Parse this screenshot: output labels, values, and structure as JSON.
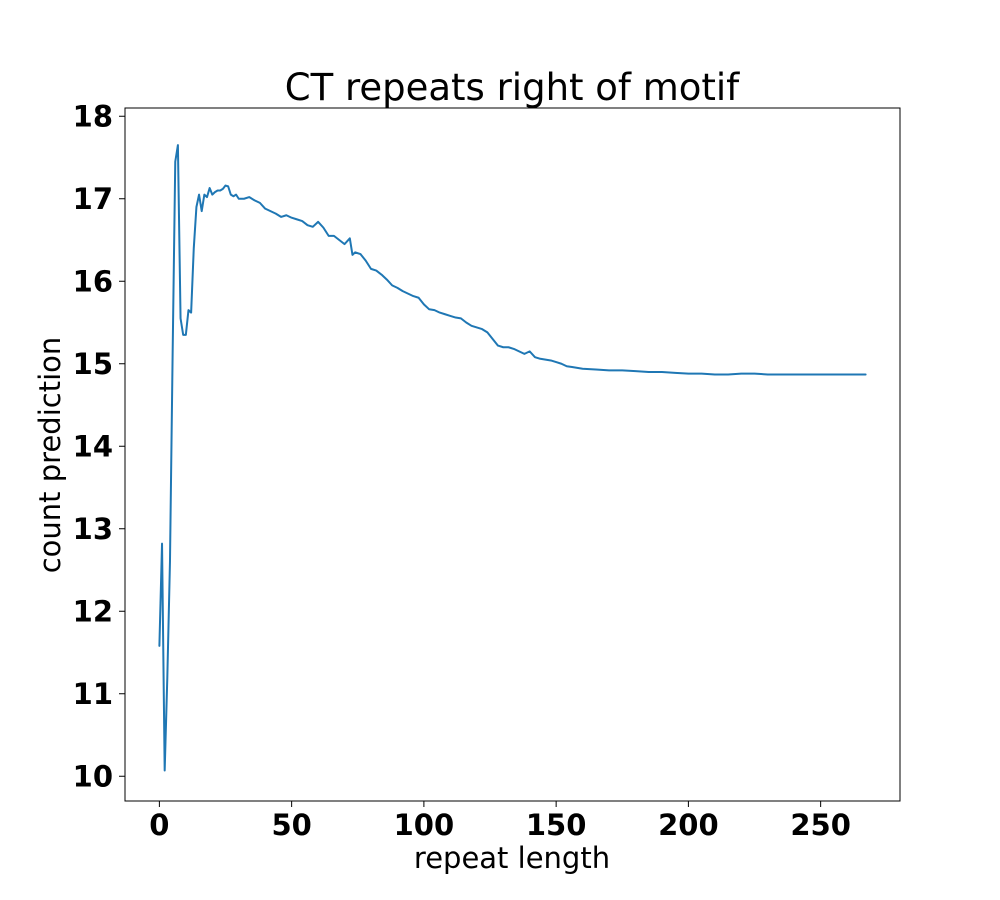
{
  "chart_data": {
    "type": "line",
    "title": "CT repeats right of motif",
    "xlabel": "repeat length",
    "ylabel": "count prediction",
    "xlim": [
      -13,
      280
    ],
    "ylim": [
      9.7,
      18.1
    ],
    "x_ticks": [
      0,
      50,
      100,
      150,
      200,
      250
    ],
    "y_ticks": [
      10,
      11,
      12,
      13,
      14,
      15,
      16,
      17,
      18
    ],
    "x_tick_labels": [
      "0",
      "50",
      "100",
      "150",
      "200",
      "250"
    ],
    "y_tick_labels": [
      "10",
      "11",
      "12",
      "13",
      "14",
      "15",
      "16",
      "17",
      "18"
    ],
    "grid": false,
    "series": [
      {
        "color": "#1f77b4",
        "x": [
          0,
          1,
          2,
          3,
          4,
          5,
          6,
          7,
          8,
          9,
          10,
          11,
          12,
          13,
          14,
          15,
          16,
          17,
          18,
          19,
          20,
          21,
          22,
          23,
          24,
          25,
          26,
          27,
          28,
          29,
          30,
          32,
          34,
          36,
          38,
          40,
          42,
          44,
          46,
          48,
          50,
          52,
          54,
          56,
          58,
          60,
          62,
          64,
          66,
          68,
          70,
          72,
          73,
          74,
          76,
          78,
          80,
          82,
          84,
          86,
          88,
          90,
          92,
          94,
          96,
          98,
          100,
          102,
          104,
          106,
          108,
          110,
          112,
          114,
          116,
          118,
          120,
          122,
          124,
          126,
          128,
          130,
          132,
          134,
          136,
          138,
          140,
          142,
          144,
          146,
          148,
          150,
          152,
          154,
          156,
          158,
          160,
          165,
          170,
          175,
          180,
          185,
          190,
          195,
          200,
          205,
          210,
          215,
          220,
          225,
          230,
          235,
          240,
          245,
          250,
          255,
          260,
          265,
          267
        ],
        "y": [
          11.58,
          12.82,
          10.07,
          11.2,
          12.6,
          15.1,
          17.45,
          17.65,
          15.55,
          15.35,
          15.35,
          15.65,
          15.62,
          16.4,
          16.9,
          17.05,
          16.85,
          17.05,
          17.02,
          17.13,
          17.05,
          17.08,
          17.1,
          17.1,
          17.12,
          17.16,
          17.15,
          17.05,
          17.03,
          17.05,
          17.0,
          17.0,
          17.02,
          16.98,
          16.95,
          16.88,
          16.85,
          16.82,
          16.78,
          16.8,
          16.77,
          16.75,
          16.73,
          16.68,
          16.66,
          16.72,
          16.65,
          16.55,
          16.55,
          16.5,
          16.45,
          16.52,
          16.32,
          16.35,
          16.33,
          16.25,
          16.15,
          16.13,
          16.08,
          16.02,
          15.95,
          15.92,
          15.88,
          15.85,
          15.82,
          15.8,
          15.72,
          15.66,
          15.65,
          15.62,
          15.6,
          15.58,
          15.56,
          15.55,
          15.5,
          15.46,
          15.44,
          15.42,
          15.38,
          15.3,
          15.22,
          15.2,
          15.2,
          15.18,
          15.15,
          15.12,
          15.15,
          15.08,
          15.06,
          15.05,
          15.04,
          15.02,
          15.0,
          14.97,
          14.96,
          14.95,
          14.94,
          14.93,
          14.92,
          14.92,
          14.91,
          14.9,
          14.9,
          14.89,
          14.88,
          14.88,
          14.87,
          14.87,
          14.88,
          14.88,
          14.87,
          14.87,
          14.87,
          14.87,
          14.87,
          14.87,
          14.87,
          14.87,
          14.87
        ]
      }
    ]
  }
}
